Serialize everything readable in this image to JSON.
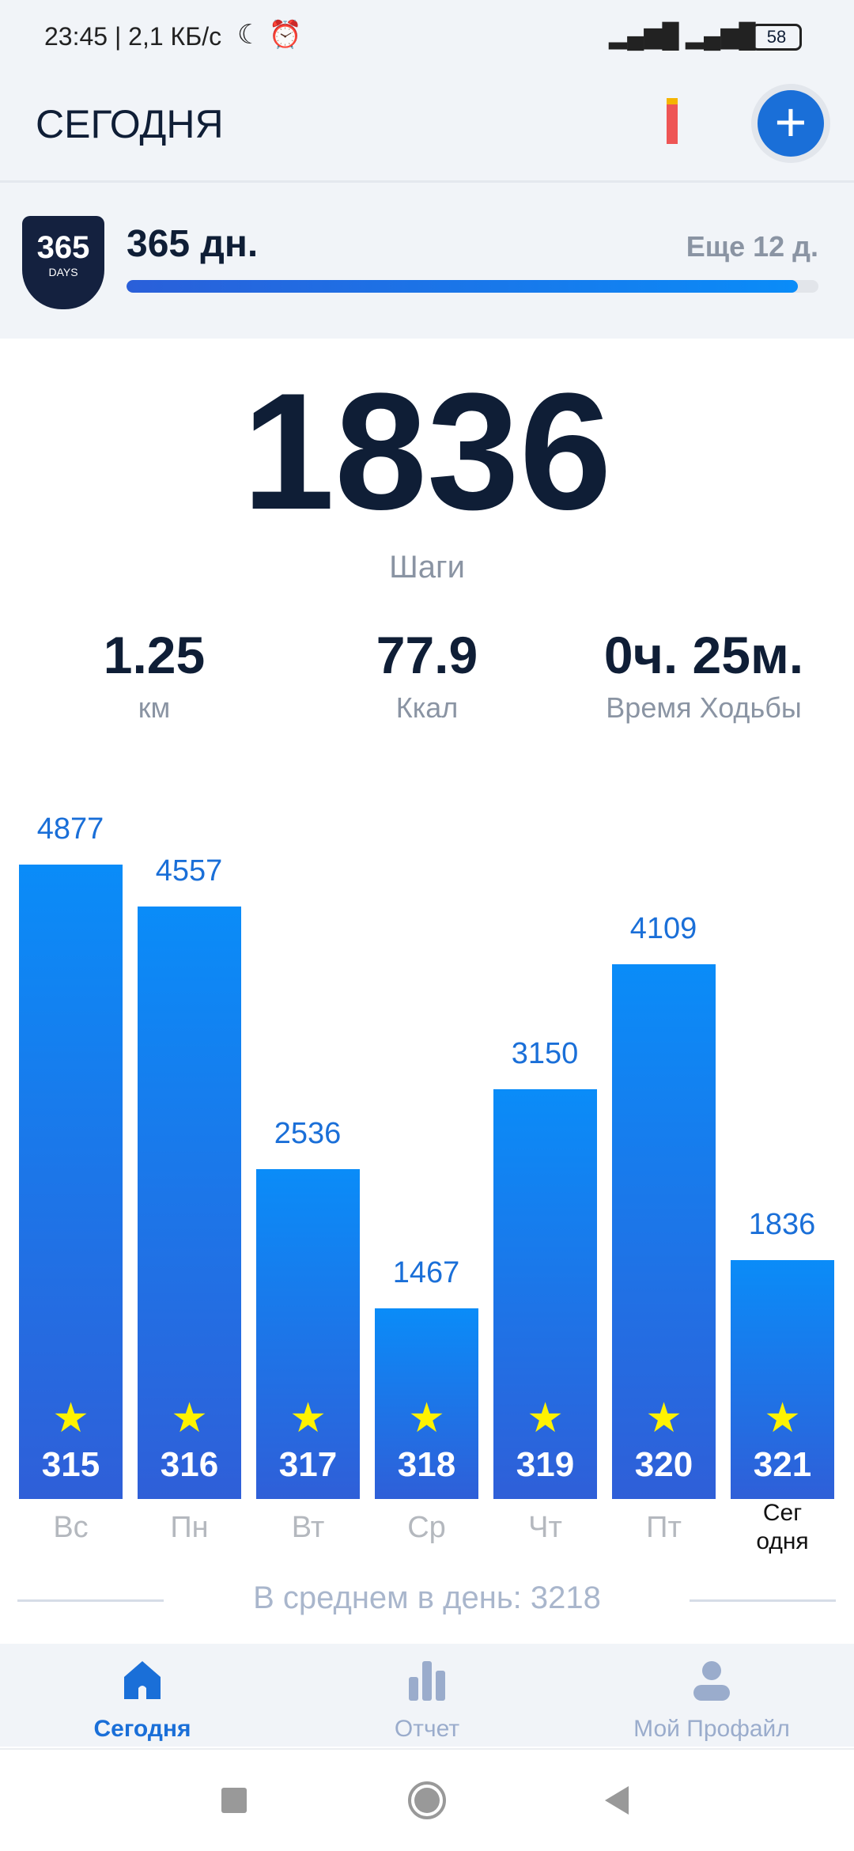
{
  "status_bar": {
    "text": "23:45 | 2,1 КБ/с",
    "battery": "58"
  },
  "header": {
    "title": "СЕГОДНЯ",
    "add_label": "+"
  },
  "streak": {
    "badge_number": "365",
    "badge_text": "DAYS",
    "days": "365 дн.",
    "remaining": "Еще 12 д.",
    "progress": 0.97
  },
  "summary": {
    "steps": "1836",
    "steps_label": "Шаги",
    "stats": [
      {
        "value": "1.25",
        "label": "км"
      },
      {
        "value": "77.9",
        "label": "Ккал"
      },
      {
        "value": "0ч. 25м.",
        "label": "Время Ходьбы"
      }
    ]
  },
  "chart_data": {
    "type": "bar",
    "categories": [
      "Вс",
      "Пн",
      "Вт",
      "Ср",
      "Чт",
      "Пт",
      "Сег\nодня"
    ],
    "values": [
      4877,
      4557,
      2536,
      1467,
      3150,
      4109,
      1836
    ],
    "day_numbers": [
      "315",
      "316",
      "317",
      "318",
      "319",
      "320",
      "321"
    ],
    "colors": {
      "bar_top": "#0a8cf8",
      "bar_bottom": "#2f5fd8",
      "label": "#1a6fd8",
      "star": "#fff200"
    }
  },
  "average": "В среднем в день: 3218",
  "nav": [
    {
      "label": "Сегодня",
      "icon": "home-icon",
      "active": true
    },
    {
      "label": "Отчет",
      "icon": "bar-chart-icon"
    },
    {
      "label": "Мой Профайл",
      "icon": "profile-icon"
    }
  ]
}
